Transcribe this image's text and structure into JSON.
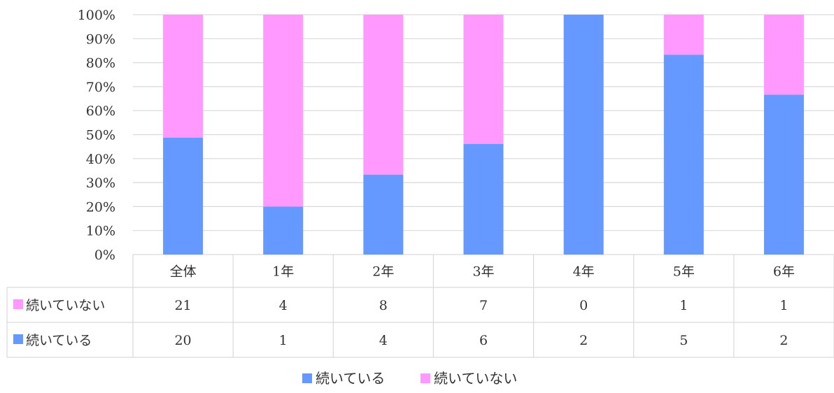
{
  "chart_data": {
    "type": "bar",
    "stacked": "percent",
    "categories": [
      "全体",
      "1年",
      "2年",
      "3年",
      "4年",
      "5年",
      "6年"
    ],
    "series": [
      {
        "name": "続いている",
        "values": [
          20,
          1,
          4,
          6,
          2,
          5,
          2
        ],
        "color": "#6699ff"
      },
      {
        "name": "続いていない",
        "values": [
          21,
          4,
          8,
          7,
          0,
          1,
          1
        ],
        "color": "#ff99ff"
      }
    ],
    "y_ticks": [
      "0%",
      "10%",
      "20%",
      "30%",
      "40%",
      "50%",
      "60%",
      "70%",
      "80%",
      "90%",
      "100%"
    ],
    "ylim": [
      0,
      100
    ],
    "grid": true,
    "data_table": true,
    "data_table_order": [
      "続いていない",
      "続いている"
    ],
    "legend_position": "bottom",
    "colors": {
      "grid": "#d9d9d9",
      "text": "#333333"
    }
  }
}
